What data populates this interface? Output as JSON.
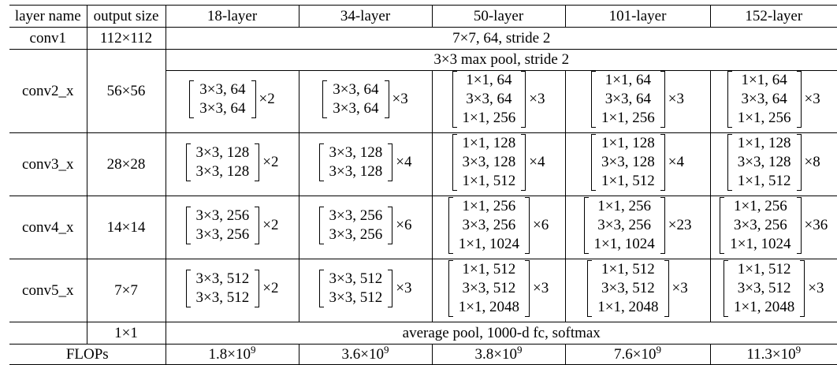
{
  "headers": [
    "layer name",
    "output size",
    "18-layer",
    "34-layer",
    "50-layer",
    "101-layer",
    "152-layer"
  ],
  "conv1": {
    "name": "conv1",
    "size": "112×112",
    "spec": "7×7, 64, stride 2"
  },
  "conv2": {
    "name": "conv2_x",
    "size": "56×56",
    "pool": "3×3 max pool, stride 2",
    "blocks": [
      {
        "lines": [
          "3×3, 64",
          "3×3, 64"
        ],
        "mult": "×2"
      },
      {
        "lines": [
          "3×3, 64",
          "3×3, 64"
        ],
        "mult": "×3"
      },
      {
        "lines": [
          "1×1, 64",
          "3×3, 64",
          "1×1, 256"
        ],
        "mult": "×3"
      },
      {
        "lines": [
          "1×1, 64",
          "3×3, 64",
          "1×1, 256"
        ],
        "mult": "×3"
      },
      {
        "lines": [
          "1×1, 64",
          "3×3, 64",
          "1×1, 256"
        ],
        "mult": "×3"
      }
    ]
  },
  "conv3": {
    "name": "conv3_x",
    "size": "28×28",
    "blocks": [
      {
        "lines": [
          "3×3, 128",
          "3×3, 128"
        ],
        "mult": "×2"
      },
      {
        "lines": [
          "3×3, 128",
          "3×3, 128"
        ],
        "mult": "×4"
      },
      {
        "lines": [
          "1×1, 128",
          "3×3, 128",
          "1×1, 512"
        ],
        "mult": "×4"
      },
      {
        "lines": [
          "1×1, 128",
          "3×3, 128",
          "1×1, 512"
        ],
        "mult": "×4"
      },
      {
        "lines": [
          "1×1, 128",
          "3×3, 128",
          "1×1, 512"
        ],
        "mult": "×8"
      }
    ]
  },
  "conv4": {
    "name": "conv4_x",
    "size": "14×14",
    "blocks": [
      {
        "lines": [
          "3×3, 256",
          "3×3, 256"
        ],
        "mult": "×2"
      },
      {
        "lines": [
          "3×3, 256",
          "3×3, 256"
        ],
        "mult": "×6"
      },
      {
        "lines": [
          "1×1, 256",
          "3×3, 256",
          "1×1, 1024"
        ],
        "mult": "×6"
      },
      {
        "lines": [
          "1×1, 256",
          "3×3, 256",
          "1×1, 1024"
        ],
        "mult": "×23"
      },
      {
        "lines": [
          "1×1, 256",
          "3×3, 256",
          "1×1, 1024"
        ],
        "mult": "×36"
      }
    ]
  },
  "conv5": {
    "name": "conv5_x",
    "size": "7×7",
    "blocks": [
      {
        "lines": [
          "3×3, 512",
          "3×3, 512"
        ],
        "mult": "×2"
      },
      {
        "lines": [
          "3×3, 512",
          "3×3, 512"
        ],
        "mult": "×3"
      },
      {
        "lines": [
          "1×1, 512",
          "3×3, 512",
          "1×1, 2048"
        ],
        "mult": "×3"
      },
      {
        "lines": [
          "1×1, 512",
          "3×3, 512",
          "1×1, 2048"
        ],
        "mult": "×3"
      },
      {
        "lines": [
          "1×1, 512",
          "3×3, 512",
          "1×1, 2048"
        ],
        "mult": "×3"
      }
    ]
  },
  "final": {
    "size": "1×1",
    "spec": "average pool, 1000-d fc, softmax"
  },
  "flops": {
    "label": "FLOPs",
    "values": [
      {
        "base": "1.8×10",
        "exp": "9"
      },
      {
        "base": "3.6×10",
        "exp": "9"
      },
      {
        "base": "3.8×10",
        "exp": "9"
      },
      {
        "base": "7.6×10",
        "exp": "9"
      },
      {
        "base": "11.3×10",
        "exp": "9"
      }
    ]
  }
}
